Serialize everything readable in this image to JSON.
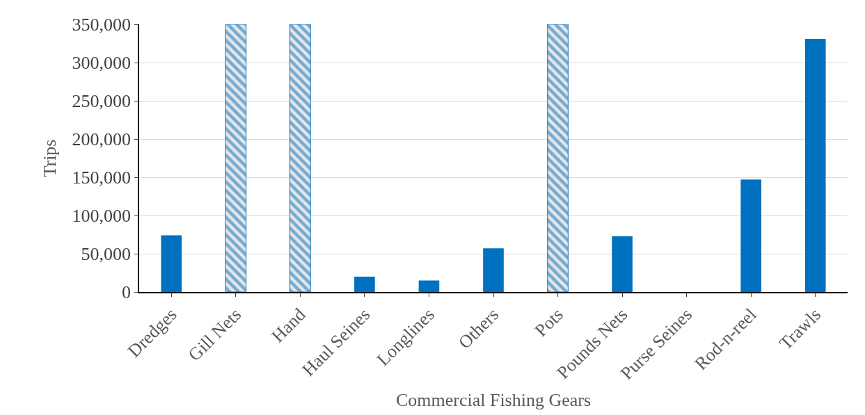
{
  "chart_data": {
    "type": "bar",
    "xlabel": "Commercial Fishing Gears",
    "ylabel": "Trips",
    "categories": [
      "Dredges",
      "Gill Nets",
      "Hand",
      "Haul Seines",
      "Longlines",
      "Others",
      "Pots",
      "Pounds Nets",
      "Purse Seines",
      "Rod-n-reel",
      "Trawls"
    ],
    "series": [
      {
        "color": "#0070c0",
        "values": [
          74000,
          null,
          null,
          20000,
          15000,
          57000,
          null,
          73000,
          0,
          147000,
          331000
        ]
      },
      {
        "color": "#0070c0",
        "values": [
          null,
          350000,
          350000,
          null,
          null,
          null,
          350000,
          null,
          null,
          null,
          null
        ]
      }
    ],
    "ylim": [
      0,
      350000
    ],
    "yticks": [
      {
        "value": 0,
        "label": "0"
      },
      {
        "value": 50000,
        "label": "50,000"
      },
      {
        "value": 100000,
        "label": "100,000"
      },
      {
        "value": 150000,
        "label": "150,000"
      },
      {
        "value": 200000,
        "label": "200,000"
      },
      {
        "value": 250000,
        "label": "250,000"
      },
      {
        "value": 300000,
        "label": "300,000"
      },
      {
        "value": 350000,
        "label": "350,000"
      }
    ],
    "grid": "y"
  }
}
